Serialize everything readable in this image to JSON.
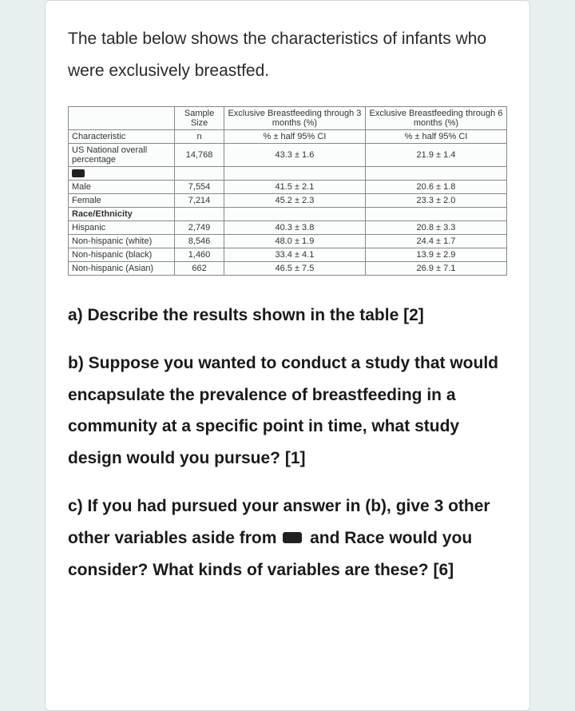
{
  "intro": "The table below shows the characteristics of infants who were exclusively breastfed.",
  "table": {
    "headers": {
      "col1": "Sample Size",
      "col2_top": "Exclusive Breastfeeding through 3 months (%)",
      "col3_top": "Exclusive Breastfeeding through 6 months (%)",
      "char": "Characteristic",
      "n": "n",
      "ci": "% ± half 95% CI"
    },
    "rows": [
      {
        "label": "US National overall percentage",
        "n": "14,768",
        "m3": "43.3 ± 1.6",
        "m6": "21.9 ± 1.4"
      }
    ],
    "sex_rows": [
      {
        "label": "Male",
        "n": "7,554",
        "m3": "41.5 ± 2.1",
        "m6": "20.6 ± 1.8"
      },
      {
        "label": "Female",
        "n": "7,214",
        "m3": "45.2 ± 2.3",
        "m6": "23.3 ± 2.0"
      }
    ],
    "race_header": "Race/Ethnicity",
    "race_rows": [
      {
        "label": "Hispanic",
        "n": "2,749",
        "m3": "40.3 ± 3.8",
        "m6": "20.8 ± 3.3"
      },
      {
        "label": "Non-hispanic (white)",
        "n": "8,546",
        "m3": "48.0 ± 1.9",
        "m6": "24.4 ± 1.7"
      },
      {
        "label": "Non-hispanic (black)",
        "n": "1,460",
        "m3": "33.4 ± 4.1",
        "m6": "13.9 ± 2.9"
      },
      {
        "label": "Non-hispanic (Asian)",
        "n": "662",
        "m3": "46.5 ± 7.5",
        "m6": "26.9 ± 7.1"
      }
    ],
    "colors": {
      "border": "#888888",
      "bg": "#fafdfb",
      "text": "#333333"
    }
  },
  "questions": {
    "a": "a) Describe the results shown in the table [2]",
    "b": "b) Suppose you wanted  to conduct a study that would encapsulate the prevalence of breastfeeding in a community at a specific point in time, what study design would you pursue? [1]",
    "c_pre": "c) If you had pursued your answer in (b), give 3 other other variables aside from ",
    "c_post": " and Race would you consider? What kinds of variables are these? [6]"
  }
}
